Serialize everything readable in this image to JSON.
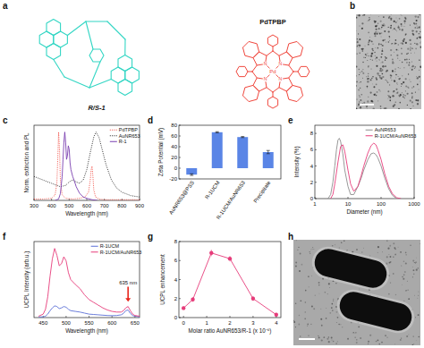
{
  "chart_data": [
    {
      "panel": "c",
      "type": "line",
      "x_label": "Wavelength (nm)",
      "y_label": "Norm. extinction and PL",
      "xlim": [
        300,
        900
      ],
      "xticks": [
        300,
        400,
        500,
        600,
        700,
        800,
        900
      ],
      "ylim": [
        0,
        1.1
      ],
      "tick_labels": "x",
      "legend": "upper right",
      "series": [
        {
          "name": "PdTPBP",
          "color": "#f0463c",
          "line_style": "dotted",
          "x": [
            300,
            350,
            400,
            420,
            430,
            435,
            440,
            445,
            450,
            460,
            480,
            520,
            560,
            590,
            610,
            620,
            625,
            630,
            635,
            640,
            650,
            670,
            700,
            800,
            900
          ],
          "values": [
            0.02,
            0.02,
            0.03,
            0.08,
            0.25,
            0.6,
            1.0,
            0.75,
            0.3,
            0.08,
            0.03,
            0.02,
            0.03,
            0.05,
            0.12,
            0.3,
            0.45,
            0.5,
            0.35,
            0.15,
            0.05,
            0.02,
            0.01,
            0.01,
            0.01
          ]
        },
        {
          "name": "AuNR653",
          "color": "#222222",
          "line_style": "dotted",
          "x": [
            300,
            350,
            400,
            450,
            480,
            500,
            520,
            540,
            560,
            580,
            600,
            620,
            640,
            653,
            670,
            690,
            710,
            740,
            770,
            800,
            850,
            900
          ],
          "values": [
            0.35,
            0.3,
            0.25,
            0.2,
            0.22,
            0.27,
            0.3,
            0.27,
            0.25,
            0.3,
            0.45,
            0.7,
            0.93,
            1.0,
            0.92,
            0.72,
            0.52,
            0.3,
            0.18,
            0.12,
            0.07,
            0.05
          ]
        },
        {
          "name": "R-1",
          "color": "#7a3fb0",
          "line_style": "solid",
          "x": [
            420,
            440,
            450,
            460,
            465,
            470,
            475,
            480,
            485,
            490,
            495,
            500,
            505,
            510,
            520,
            530,
            540,
            560,
            580,
            600,
            630,
            660
          ],
          "values": [
            0,
            0.02,
            0.1,
            0.35,
            0.6,
            0.85,
            1.0,
            0.85,
            0.6,
            0.65,
            0.8,
            0.75,
            0.55,
            0.45,
            0.35,
            0.28,
            0.2,
            0.1,
            0.05,
            0.03,
            0.01,
            0
          ]
        }
      ]
    },
    {
      "panel": "d",
      "type": "bar",
      "y_label": "Zeta Potential (mV)",
      "categories": [
        "AuNR653@PSS",
        "R-1UCM",
        "R-1UCM/AuNR653",
        "Precipitate"
      ],
      "values": [
        -12,
        67,
        58,
        30
      ],
      "errors": [
        1.5,
        1,
        1,
        3
      ],
      "color": "#5a85e6",
      "ylim": [
        -20,
        80
      ],
      "yticks": [
        -20,
        0,
        20,
        40,
        60,
        80
      ]
    },
    {
      "panel": "e",
      "type": "line",
      "x_label": "Diameter (nm)",
      "y_label": "Intensity (%)",
      "log": "x",
      "xlim": [
        1,
        1000
      ],
      "xticks": [
        1,
        10,
        100,
        1000
      ],
      "ylim": [
        0,
        9
      ],
      "yticks": [
        0,
        2,
        4,
        6,
        8
      ],
      "legend": "upper right",
      "series": [
        {
          "name": "AuNR653",
          "color": "#8c8c8c",
          "line_style": "solid",
          "x": [
            2.5,
            3,
            3.5,
            4,
            4.5,
            5,
            5.5,
            6,
            7,
            8,
            10,
            12,
            15,
            20,
            25,
            30,
            40,
            50,
            60,
            70,
            80,
            100,
            130,
            170,
            220,
            300
          ],
          "values": [
            0,
            0.5,
            2,
            4,
            6,
            7.2,
            7.4,
            7,
            5.5,
            3.5,
            1.5,
            0.5,
            0.5,
            1.5,
            2.5,
            3.5,
            4.8,
            5.5,
            5.6,
            5.4,
            5,
            4,
            2.5,
            1.2,
            0.4,
            0
          ]
        },
        {
          "name": "R-1UCM/AuNR653",
          "color": "#e63c7a",
          "line_style": "solid",
          "x": [
            3,
            3.5,
            4,
            5,
            6,
            7,
            8,
            10,
            12,
            15,
            20,
            25,
            30,
            40,
            50,
            60,
            70,
            80,
            100,
            130,
            170,
            220,
            300,
            400
          ],
          "values": [
            0,
            0.5,
            1.8,
            4.5,
            6.4,
            6.6,
            5.8,
            3.5,
            1.8,
            0.9,
            1.5,
            2.8,
            4,
            5.6,
            6.5,
            6.8,
            6.6,
            6,
            4.8,
            3,
            1.5,
            0.6,
            0.1,
            0
          ]
        }
      ]
    },
    {
      "panel": "f",
      "type": "line",
      "x_label": "Wavelength (nm)",
      "y_label": "UCPL Intensity (arb.u.)",
      "xlim": [
        430,
        660
      ],
      "xticks": [
        450,
        500,
        550,
        600,
        650
      ],
      "ylim": [
        0,
        1.1
      ],
      "tick_labels": "x",
      "legend": "upper right",
      "series": [
        {
          "name": "R-1UCM",
          "color": "#5b6fd6",
          "line_style": "solid",
          "x": [
            440,
            450,
            455,
            460,
            465,
            470,
            475,
            480,
            485,
            490,
            495,
            500,
            505,
            510,
            520,
            530,
            540,
            550,
            560,
            570,
            580,
            590,
            600,
            610,
            620,
            625,
            630,
            635,
            640,
            645,
            650,
            660
          ],
          "values": [
            0.01,
            0.01,
            0.02,
            0.05,
            0.1,
            0.14,
            0.17,
            0.16,
            0.13,
            0.14,
            0.16,
            0.15,
            0.12,
            0.1,
            0.09,
            0.08,
            0.065,
            0.05,
            0.045,
            0.04,
            0.035,
            0.03,
            0.028,
            0.03,
            0.04,
            0.06,
            0.1,
            0.11,
            0.06,
            0.03,
            0.02,
            0.01
          ]
        },
        {
          "name": "R-1UCM/AuNR653",
          "color": "#e63c7a",
          "line_style": "solid",
          "x": [
            440,
            450,
            455,
            460,
            465,
            470,
            475,
            480,
            485,
            490,
            495,
            500,
            505,
            510,
            520,
            530,
            540,
            550,
            560,
            570,
            580,
            590,
            600,
            610,
            620,
            625,
            630,
            635,
            640,
            645,
            650,
            660
          ],
          "values": [
            0.02,
            0.05,
            0.12,
            0.3,
            0.6,
            0.85,
            1.0,
            0.9,
            0.75,
            0.78,
            0.88,
            0.82,
            0.65,
            0.55,
            0.48,
            0.42,
            0.33,
            0.26,
            0.22,
            0.18,
            0.14,
            0.11,
            0.09,
            0.08,
            0.08,
            0.1,
            0.14,
            0.16,
            0.1,
            0.05,
            0.03,
            0.02
          ]
        }
      ],
      "annotations": [
        {
          "text": "635 nm",
          "x": 635,
          "color": "#e8261c"
        }
      ]
    },
    {
      "panel": "g",
      "type": "scatter",
      "x_label": "Molar ratio AuNR653/R-1 (x 10⁻⁶)",
      "y_label": "UCPL enhancement",
      "x": [
        0,
        0.4,
        1.2,
        2,
        3,
        4
      ],
      "values": [
        1,
        1.9,
        6.8,
        6.2,
        2,
        0.3
      ],
      "errors": [
        0.05,
        0.1,
        0.2,
        0.15,
        0.1,
        0.05
      ],
      "color": "#e63c7a",
      "marker": "circle",
      "line_style": "solid",
      "xlim": [
        -0.2,
        4.2
      ],
      "xticks": [
        0,
        1,
        2,
        3,
        4
      ],
      "ylim": [
        0,
        8
      ],
      "yticks": [
        0,
        2,
        4,
        6,
        8
      ]
    }
  ],
  "panels": [
    {
      "panel": "a",
      "structures": [
        {
          "label": "R/S-1",
          "color": "#33d6c4"
        },
        {
          "label": "PdTPBP",
          "color": "#f0463c",
          "atoms": [
            "Pd",
            "N"
          ]
        }
      ]
    },
    {
      "panel": "b"
    },
    {
      "panel": "h"
    }
  ]
}
